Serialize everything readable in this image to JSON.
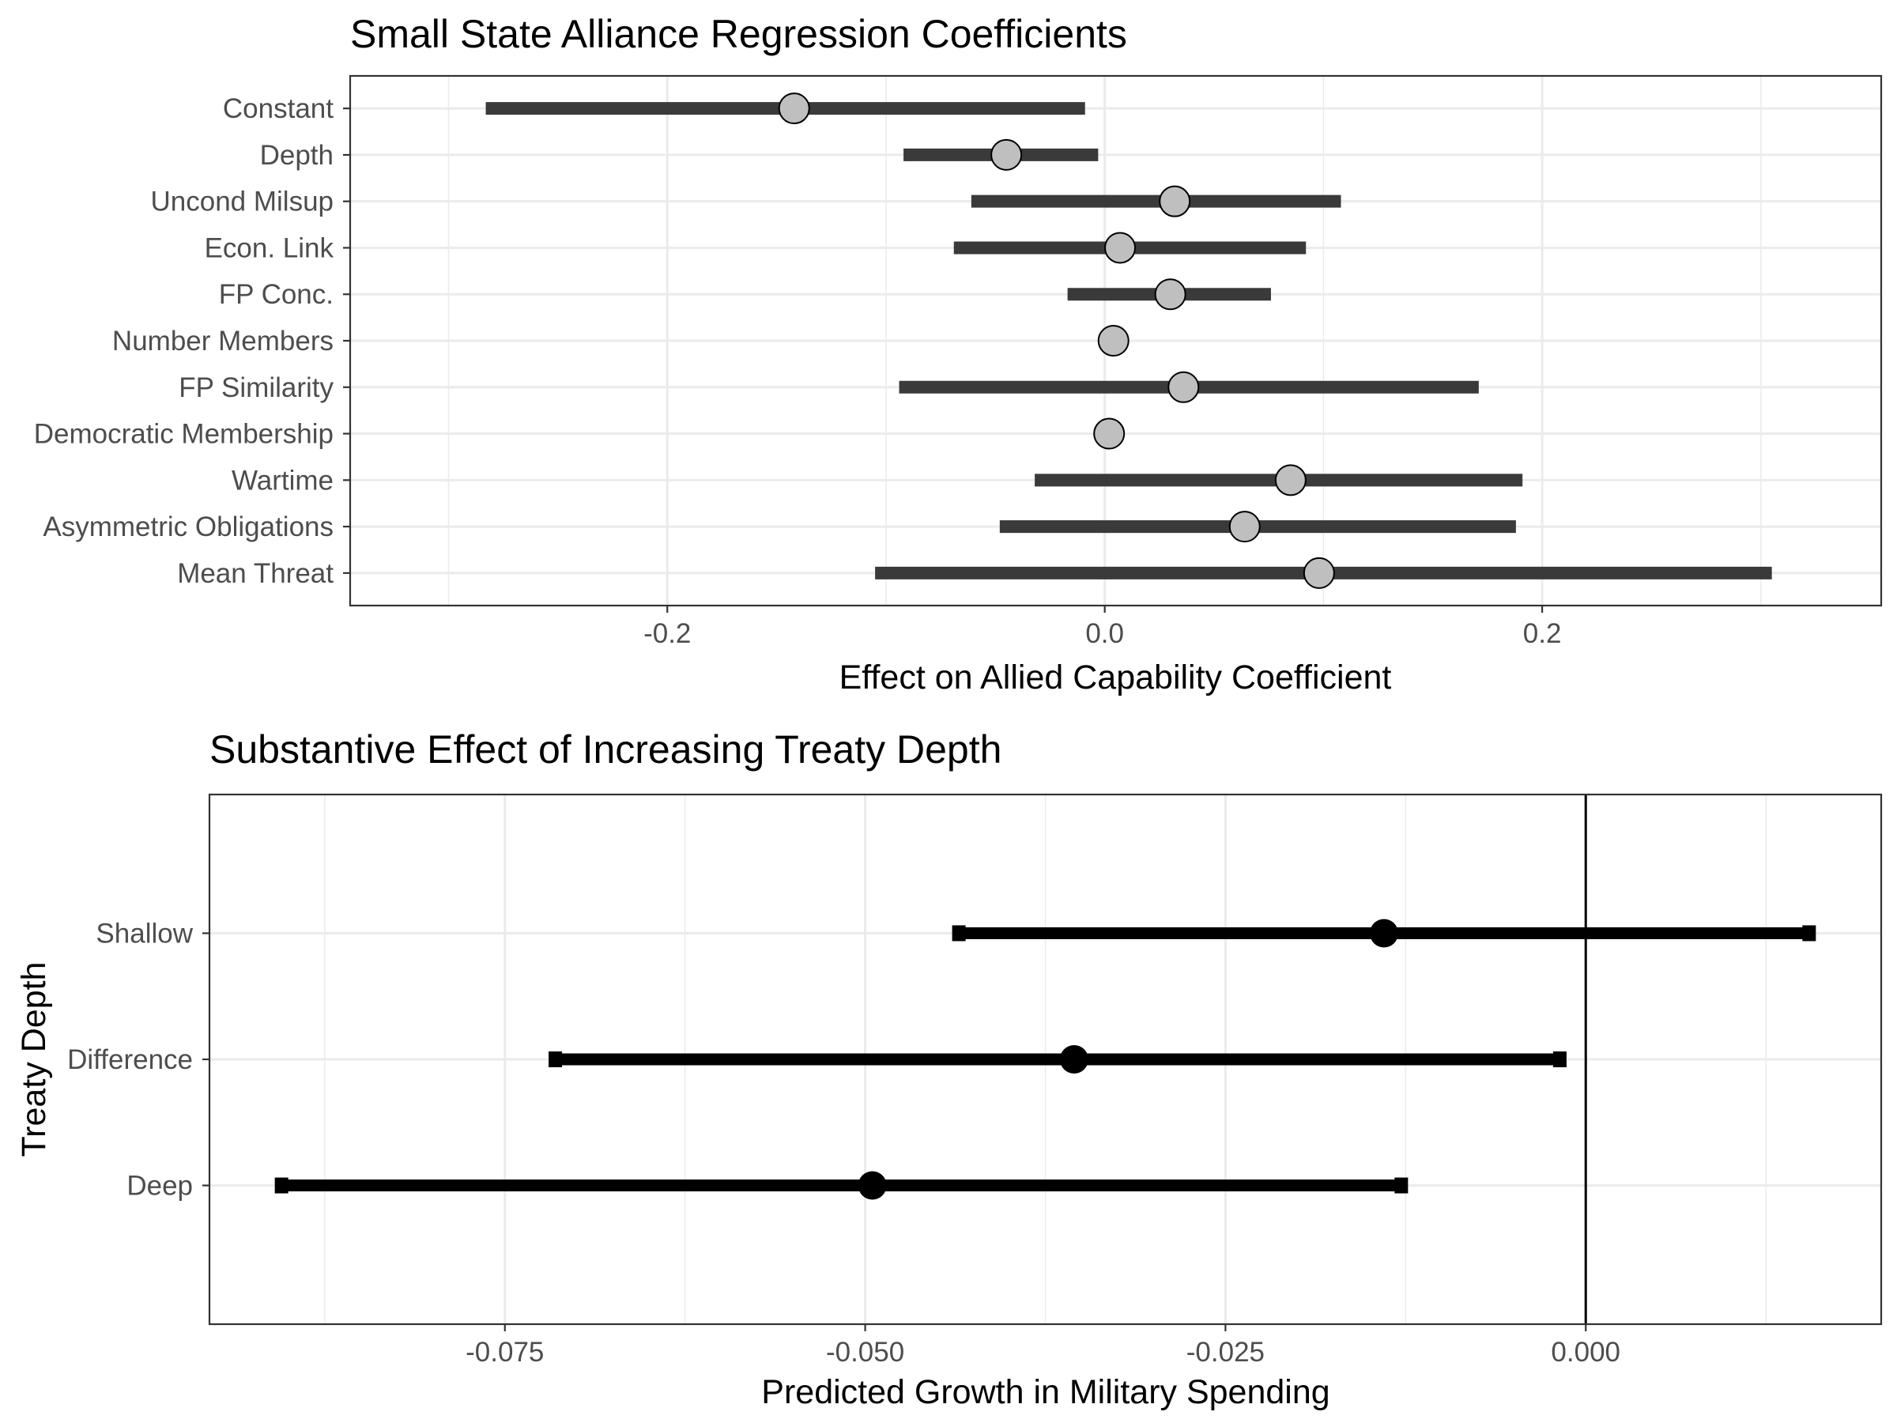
{
  "chart_data": [
    {
      "type": "coefficient-interval",
      "title": "Small State Alliance Regression Coefficients",
      "xlabel": "Effect on Allied Capability Coefficient",
      "ylabel": "",
      "xlim": [
        -0.345,
        0.355
      ],
      "x_ticks": [
        -0.2,
        0.0,
        0.2
      ],
      "x_tick_labels": [
        "-0.2",
        "0.0",
        "0.2"
      ],
      "grid": true,
      "point_fill": "#bfbfbf",
      "point_stroke": "#000000",
      "interval_color": "#3a3a3a",
      "categories": [
        "Constant",
        "Depth",
        "Uncond Milsup",
        "Econ. Link",
        "FP Conc.",
        "Number Members",
        "FP Similarity",
        "Democratic Membership",
        "Wartime",
        "Asymmetric Obligations",
        "Mean Threat"
      ],
      "estimates": [
        -0.142,
        -0.045,
        0.032,
        0.007,
        0.03,
        0.004,
        0.036,
        0.002,
        0.085,
        0.064,
        0.098
      ],
      "lower": [
        -0.283,
        -0.092,
        -0.061,
        -0.069,
        -0.017,
        0.003,
        -0.094,
        0.001,
        -0.032,
        -0.048,
        -0.105
      ],
      "upper": [
        -0.009,
        -0.003,
        0.108,
        0.092,
        0.076,
        0.005,
        0.171,
        0.003,
        0.191,
        0.188,
        0.305
      ]
    },
    {
      "type": "coefficient-interval",
      "title": "Substantive Effect of Increasing Treaty Depth",
      "xlabel": "Predicted Growth in Military Spending",
      "ylabel": "Treaty Depth",
      "xlim": [
        -0.0955,
        0.0205
      ],
      "x_ticks": [
        -0.075,
        -0.05,
        -0.025,
        0.0
      ],
      "x_tick_labels": [
        "-0.075",
        "-0.050",
        "-0.025",
        "0.000"
      ],
      "reference_line": 0.0,
      "grid": true,
      "point_fill": "#000000",
      "interval_color": "#000000",
      "categories": [
        "Shallow",
        "Difference",
        "Deep"
      ],
      "estimates": [
        -0.014,
        -0.0355,
        -0.0495
      ],
      "lower": [
        -0.0435,
        -0.0715,
        -0.0905
      ],
      "upper": [
        0.0155,
        -0.0018,
        -0.0128
      ]
    }
  ]
}
